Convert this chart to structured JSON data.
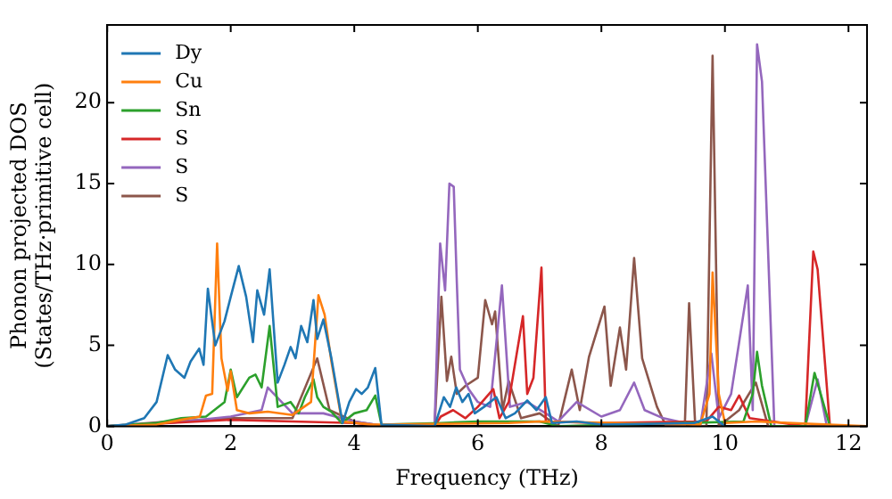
{
  "chart_data": {
    "type": "line",
    "xlabel": "Frequency (THz)",
    "ylabel": "Phonon projected DOS\n(States/THz·primitive cell)",
    "xlim": [
      0,
      12.3
    ],
    "ylim": [
      0,
      24.8
    ],
    "xticks": [
      0,
      2,
      4,
      6,
      8,
      10,
      12
    ],
    "yticks": [
      0,
      5,
      10,
      15,
      20
    ],
    "legend": "top left",
    "grid": false,
    "marker": "none",
    "line_style": "solid",
    "series": [
      {
        "name": "Dy",
        "color": "#1f77b4",
        "x": [
          0,
          0.3,
          0.6,
          0.8,
          0.98,
          1.1,
          1.25,
          1.35,
          1.49,
          1.56,
          1.63,
          1.75,
          1.9,
          2.0,
          2.13,
          2.25,
          2.36,
          2.43,
          2.54,
          2.63,
          2.76,
          2.87,
          2.97,
          3.05,
          3.14,
          3.24,
          3.34,
          3.4,
          3.5,
          3.63,
          3.81,
          3.92,
          4.03,
          4.12,
          4.22,
          4.34,
          4.44,
          5.3,
          5.45,
          5.55,
          5.65,
          5.75,
          5.85,
          5.95,
          6.1,
          6.3,
          6.45,
          6.6,
          6.8,
          6.95,
          7.1,
          7.2,
          7.6,
          8.0,
          9.5,
          9.8,
          10.0
        ],
        "values": [
          0,
          0.1,
          0.5,
          1.5,
          4.4,
          3.5,
          3.0,
          4.0,
          4.8,
          3.8,
          8.5,
          5.0,
          6.5,
          8.0,
          9.9,
          8.0,
          5.2,
          8.4,
          6.9,
          9.7,
          2.7,
          3.8,
          4.9,
          4.2,
          6.2,
          5.2,
          7.8,
          5.4,
          6.6,
          4.2,
          0.2,
          1.5,
          2.3,
          2.0,
          2.4,
          3.6,
          0.1,
          0,
          1.8,
          1.2,
          2.4,
          1.5,
          2.0,
          0.8,
          1.2,
          1.8,
          0.5,
          0.8,
          1.6,
          1.0,
          1.8,
          0.2,
          0.3,
          0.1,
          0.2,
          0.6,
          0
        ]
      },
      {
        "name": "Cu",
        "color": "#ff7f0e",
        "x": [
          0,
          0.8,
          1.2,
          1.5,
          1.6,
          1.7,
          1.78,
          1.85,
          1.95,
          2.0,
          2.1,
          2.3,
          2.6,
          3.0,
          3.3,
          3.42,
          3.52,
          3.63,
          3.8,
          4.3,
          6.5,
          7.0,
          9.6,
          9.75,
          9.8,
          9.9,
          10.0,
          10.5,
          12.3
        ],
        "values": [
          0,
          0.1,
          0.4,
          0.6,
          1.9,
          2.0,
          11.3,
          4.2,
          2.2,
          3.4,
          1.0,
          0.8,
          0.9,
          0.7,
          1.5,
          8.1,
          6.9,
          4.0,
          0.3,
          0.1,
          0.2,
          0.3,
          0.1,
          2.0,
          9.5,
          2.0,
          0.2,
          0.3,
          0
        ]
      },
      {
        "name": "Sn",
        "color": "#2ca02c",
        "x": [
          0,
          0.8,
          1.2,
          1.6,
          1.9,
          2.0,
          2.1,
          2.3,
          2.4,
          2.5,
          2.63,
          2.76,
          2.97,
          3.1,
          3.2,
          3.34,
          3.4,
          3.5,
          3.63,
          3.8,
          4.0,
          4.2,
          4.34,
          4.44,
          5.4,
          6.0,
          7.0,
          7.3,
          10.3,
          10.45,
          10.52,
          10.6,
          10.75,
          11.3,
          11.45,
          11.55,
          11.7,
          12.3
        ],
        "values": [
          0,
          0.2,
          0.5,
          0.6,
          1.5,
          3.5,
          1.8,
          3.0,
          3.2,
          2.4,
          6.2,
          1.2,
          1.5,
          0.8,
          1.8,
          2.9,
          1.8,
          1.2,
          0.9,
          0.2,
          0.8,
          1.0,
          1.9,
          0.1,
          0.2,
          0.3,
          0.3,
          0,
          0.3,
          2.0,
          4.6,
          2.5,
          0,
          0,
          3.3,
          2.0,
          0,
          0
        ]
      },
      {
        "name": "S",
        "color": "#d62728",
        "x": [
          0,
          1.0,
          2.0,
          3.0,
          4.0,
          4.5,
          5.3,
          5.4,
          5.6,
          5.8,
          6.0,
          6.25,
          6.35,
          6.5,
          6.73,
          6.8,
          6.9,
          7.03,
          7.1,
          8.0,
          9.7,
          9.9,
          10.1,
          10.23,
          10.4,
          11.3,
          11.43,
          11.5,
          11.7,
          12.3
        ],
        "values": [
          0,
          0.2,
          0.4,
          0.3,
          0.2,
          0,
          0,
          0.6,
          1.0,
          0.5,
          1.2,
          2.3,
          0.5,
          1.5,
          6.8,
          2.0,
          3.0,
          9.8,
          0.3,
          0.2,
          0.3,
          1.2,
          1.0,
          1.9,
          0.5,
          0,
          10.8,
          9.7,
          0,
          0
        ]
      },
      {
        "name": "S",
        "color": "#9467bd",
        "x": [
          0,
          1.0,
          2.0,
          2.5,
          2.6,
          3.0,
          3.5,
          4.0,
          4.5,
          5.3,
          5.39,
          5.47,
          5.54,
          5.61,
          5.66,
          5.71,
          5.85,
          6.0,
          6.2,
          6.39,
          6.52,
          6.8,
          7.1,
          7.3,
          7.6,
          8.0,
          8.3,
          8.53,
          8.7,
          9.0,
          9.6,
          9.78,
          9.9,
          10.1,
          10.23,
          10.37,
          10.45,
          10.52,
          10.6,
          10.8,
          11.3,
          11.5,
          11.65,
          12.3
        ],
        "values": [
          0,
          0.2,
          0.6,
          1.0,
          2.4,
          0.8,
          0.8,
          0.3,
          0,
          0,
          11.3,
          8.4,
          15.0,
          14.8,
          8.9,
          3.5,
          2.3,
          1.5,
          1.2,
          8.7,
          1.2,
          1.5,
          0.8,
          0.3,
          1.5,
          0.6,
          1.0,
          2.7,
          1.0,
          0.5,
          0,
          4.5,
          0.5,
          2.0,
          5.2,
          8.7,
          1.0,
          23.6,
          21.3,
          0,
          0,
          2.9,
          0,
          0
        ]
      },
      {
        "name": "S",
        "color": "#8c564b",
        "x": [
          0,
          1.0,
          2.0,
          3.0,
          3.4,
          3.6,
          4.0,
          4.5,
          5.3,
          5.41,
          5.5,
          5.57,
          5.66,
          5.8,
          6.0,
          6.12,
          6.23,
          6.28,
          6.4,
          6.5,
          6.7,
          7.0,
          7.3,
          7.52,
          7.65,
          7.8,
          8.05,
          8.15,
          8.3,
          8.4,
          8.53,
          8.66,
          8.9,
          9.05,
          9.35,
          9.42,
          9.52,
          9.7,
          9.8,
          9.9,
          10.23,
          10.5,
          10.7,
          12.3
        ],
        "values": [
          0,
          0.3,
          0.5,
          0.5,
          4.2,
          1.0,
          0.3,
          0,
          0,
          8.0,
          2.8,
          4.3,
          2.0,
          2.5,
          3.0,
          7.8,
          6.3,
          7.1,
          1.0,
          2.8,
          0.5,
          0.8,
          0,
          3.5,
          1.0,
          4.3,
          7.4,
          2.5,
          6.1,
          3.5,
          10.4,
          4.2,
          1.2,
          0,
          0,
          7.6,
          0,
          0,
          22.9,
          0,
          1.0,
          2.7,
          0,
          0
        ]
      }
    ]
  }
}
